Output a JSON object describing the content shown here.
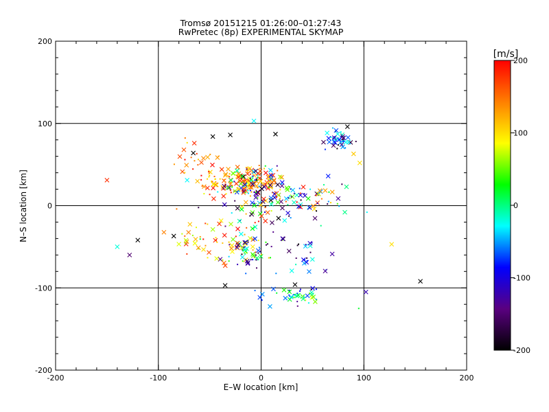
{
  "chart_data": {
    "type": "scatter",
    "title": "Tromsø 20151215 01:26:00–01:27:43",
    "subtitle": "RwPretec (8p) EXPERIMENTAL SKYMAP",
    "xlabel": "E–W location [km]",
    "ylabel": "N–S location [km]",
    "xlim": [
      -200,
      200
    ],
    "ylim": [
      -200,
      200
    ],
    "xticks": [
      "-200",
      "-100",
      "0",
      "100",
      "200"
    ],
    "yticks": [
      "-200",
      "-100",
      "0",
      "100",
      "200"
    ],
    "grid": true,
    "marker_styles": [
      "dot",
      "x"
    ],
    "colorbar": {
      "label": "[m/s]",
      "range": [
        -200,
        200
      ],
      "ticks": [
        "200",
        "100",
        "0",
        "-100",
        "-200"
      ],
      "colors": [
        "#000000",
        "#5a0080",
        "#0000ff",
        "#00ffff",
        "#00ff00",
        "#ffff00",
        "#ff7f00",
        "#ff0000"
      ]
    },
    "clusters": [
      {
        "center": [
          -20,
          30
        ],
        "spread": [
          22,
          10
        ],
        "count": 150,
        "velocity": [
          80,
          200
        ]
      },
      {
        "center": [
          -5,
          25
        ],
        "spread": [
          15,
          10
        ],
        "count": 90,
        "velocity": [
          -200,
          200
        ]
      },
      {
        "center": [
          35,
          8
        ],
        "spread": [
          22,
          10
        ],
        "count": 80,
        "velocity": [
          -200,
          200
        ]
      },
      {
        "center": [
          -15,
          -55
        ],
        "spread": [
          12,
          10
        ],
        "count": 70,
        "velocity": [
          -200,
          200
        ]
      },
      {
        "center": [
          -55,
          -40
        ],
        "spread": [
          18,
          12
        ],
        "count": 40,
        "velocity": [
          60,
          200
        ]
      },
      {
        "center": [
          30,
          -110
        ],
        "spread": [
          15,
          6
        ],
        "count": 40,
        "velocity": [
          -100,
          100
        ]
      },
      {
        "center": [
          77,
          80
        ],
        "spread": [
          7,
          6
        ],
        "count": 45,
        "velocity": [
          -200,
          0
        ]
      },
      {
        "center": [
          -10,
          -20
        ],
        "spread": [
          20,
          18
        ],
        "count": 40,
        "velocity": [
          -200,
          200
        ]
      },
      {
        "center": [
          45,
          -70
        ],
        "spread": [
          15,
          25
        ],
        "count": 30,
        "velocity": [
          -200,
          0
        ]
      },
      {
        "center": [
          -60,
          60
        ],
        "spread": [
          10,
          10
        ],
        "count": 20,
        "velocity": [
          100,
          200
        ]
      }
    ],
    "points": [
      {
        "x": -150,
        "y": 31,
        "v": 180,
        "m": "x"
      },
      {
        "x": -140,
        "y": -50,
        "v": -20,
        "m": "x"
      },
      {
        "x": -128,
        "y": -60,
        "v": -150,
        "m": "x"
      },
      {
        "x": -120,
        "y": -42,
        "v": -200,
        "m": "x"
      },
      {
        "x": 155,
        "y": -92,
        "v": -200,
        "m": "x"
      },
      {
        "x": 127,
        "y": -47,
        "v": 100,
        "m": "x"
      },
      {
        "x": 102,
        "y": -105,
        "v": -120,
        "m": "x"
      },
      {
        "x": 95,
        "y": -125,
        "v": 20,
        "m": "dot"
      },
      {
        "x": 96,
        "y": 52,
        "v": 100,
        "m": "x"
      },
      {
        "x": 90,
        "y": 63,
        "v": 110,
        "m": "x"
      },
      {
        "x": -7,
        "y": 103,
        "v": -30,
        "m": "x"
      },
      {
        "x": 14,
        "y": 87,
        "v": -200,
        "m": "x"
      },
      {
        "x": -47,
        "y": 84,
        "v": -200,
        "m": "x"
      },
      {
        "x": -30,
        "y": 86,
        "v": -200,
        "m": "x"
      },
      {
        "x": -65,
        "y": 76,
        "v": 180,
        "m": "x"
      },
      {
        "x": -66,
        "y": 64,
        "v": -200,
        "m": "x"
      },
      {
        "x": -72,
        "y": 31,
        "v": -30,
        "m": "x"
      },
      {
        "x": -85,
        "y": -37,
        "v": -200,
        "m": "x"
      },
      {
        "x": -35,
        "y": -97,
        "v": -200,
        "m": "x"
      },
      {
        "x": 33,
        "y": -96,
        "v": -200,
        "m": "x"
      },
      {
        "x": 103,
        "y": -8,
        "v": -30,
        "m": "dot"
      },
      {
        "x": 84,
        "y": 96,
        "v": -200,
        "m": "x"
      }
    ]
  }
}
